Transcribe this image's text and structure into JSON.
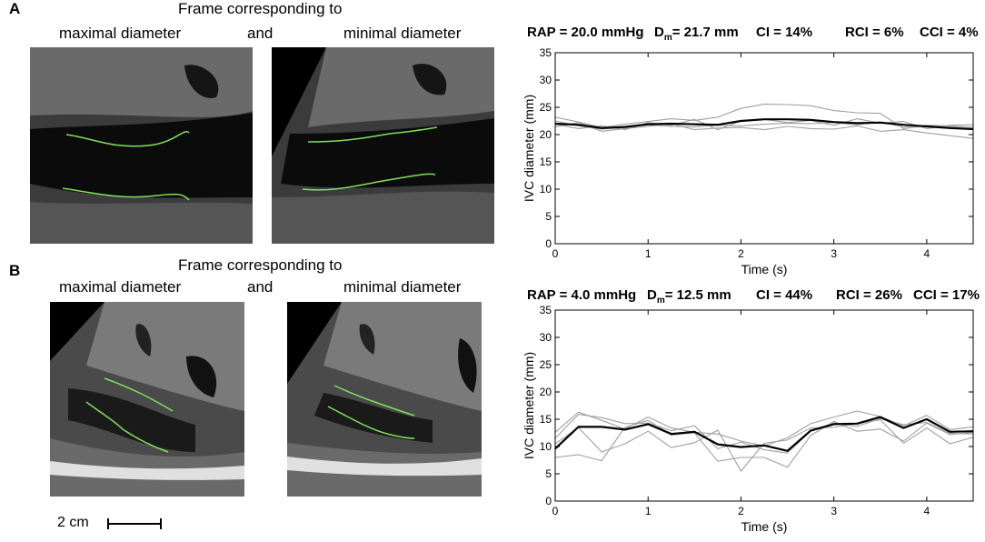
{
  "panels": [
    {
      "letter": "A",
      "frame_caption": "Frame corresponding to",
      "left_caption": "maximal diameter",
      "and_caption": "and",
      "right_caption": "minimal diameter",
      "stats": {
        "rap": "RAP = 20.0 mmHg",
        "dm_prefix": "D",
        "dm_sub": "m",
        "dm_suffix": "= 21.7 mm",
        "ci": "CI = 14%",
        "rci": "RCI = 6%",
        "cci": "CCI = 4%"
      }
    },
    {
      "letter": "B",
      "frame_caption": "Frame corresponding to",
      "left_caption": "maximal diameter",
      "and_caption": "and",
      "right_caption": "minimal diameter",
      "stats": {
        "rap": "RAP = 4.0 mmHg",
        "dm_prefix": "D",
        "dm_sub": "m",
        "dm_suffix": "= 12.5 mm",
        "ci": "CI = 44%",
        "rci": "RCI = 26%",
        "cci": "CCI = 17%"
      }
    }
  ],
  "scale_bar": {
    "label": "2 cm"
  },
  "colors": {
    "tracing": "#7fe05a",
    "mean_line": "#000000",
    "frame_lines": "#a0a0a0"
  },
  "chart_data": [
    {
      "type": "line",
      "xlabel": "Time (s)",
      "ylabel": "IVC diameter (mm)",
      "xlim": [
        0,
        4.5
      ],
      "ylim": [
        0,
        35
      ],
      "xticks": [
        0,
        1,
        2,
        3,
        4
      ],
      "yticks": [
        0,
        5,
        10,
        15,
        20,
        25,
        30,
        35
      ],
      "x": [
        0,
        0.25,
        0.5,
        0.75,
        1.0,
        1.25,
        1.5,
        1.75,
        2.0,
        2.25,
        2.5,
        2.75,
        3.0,
        3.25,
        3.5,
        3.75,
        4.0,
        4.25,
        4.5
      ],
      "series": [
        {
          "values": [
            22.5,
            21.6,
            21.0,
            21.3,
            21.8,
            21.5,
            21.4,
            21.7,
            21.6,
            21.9,
            22.1,
            22.0,
            22.2,
            21.8,
            22.3,
            21.4,
            21.7,
            21.6,
            21.3
          ]
        },
        {
          "values": [
            23.2,
            22.3,
            21.3,
            21.9,
            22.4,
            22.9,
            22.6,
            23.2,
            24.8,
            25.6,
            25.5,
            25.3,
            24.4,
            24.0,
            23.9,
            21.1,
            21.6,
            21.4,
            21.0
          ]
        },
        {
          "values": [
            21.4,
            22.2,
            20.6,
            21.1,
            21.5,
            22.0,
            20.9,
            21.2,
            21.3,
            20.9,
            21.5,
            21.1,
            21.0,
            21.6,
            20.6,
            20.9,
            20.3,
            19.8,
            19.3
          ]
        },
        {
          "values": [
            21.9,
            21.1,
            21.6,
            20.9,
            22.2,
            21.7,
            22.8,
            20.9,
            22.5,
            22.8,
            22.2,
            22.6,
            21.7,
            22.9,
            22.1,
            22.4,
            21.1,
            21.7,
            21.8
          ]
        },
        {
          "values": [
            22.0,
            21.8,
            21.2,
            21.4,
            21.9,
            22.0,
            21.9,
            21.8,
            22.5,
            22.8,
            22.8,
            22.7,
            22.3,
            22.1,
            22.2,
            21.8,
            21.5,
            21.2,
            21.0
          ]
        }
      ]
    },
    {
      "type": "line",
      "xlabel": "Time (s)",
      "ylabel": "IVC diameter (mm)",
      "xlim": [
        0,
        4.5
      ],
      "ylim": [
        0,
        35
      ],
      "xticks": [
        0,
        1,
        2,
        3,
        4
      ],
      "yticks": [
        0,
        5,
        10,
        15,
        20,
        25,
        30,
        35
      ],
      "x": [
        0,
        0.25,
        0.5,
        0.75,
        1.0,
        1.25,
        1.5,
        1.75,
        2.0,
        2.25,
        2.5,
        2.75,
        3.0,
        3.25,
        3.5,
        3.75,
        4.0,
        4.25,
        4.5
      ],
      "series": [
        {
          "values": [
            8.0,
            8.5,
            7.4,
            13.5,
            14.8,
            12.1,
            12.5,
            7.3,
            8.0,
            8.0,
            6.2,
            12.0,
            14.6,
            12.8,
            13.2,
            11.0,
            14.3,
            12.2,
            12.6
          ]
        },
        {
          "values": [
            11.5,
            15.9,
            15.3,
            14.2,
            14.3,
            12.9,
            13.8,
            9.6,
            10.8,
            9.4,
            8.8,
            12.8,
            14.3,
            13.7,
            15.1,
            14.0,
            14.4,
            12.4,
            12.3
          ]
        },
        {
          "values": [
            12.6,
            16.3,
            14.8,
            13.2,
            15.4,
            13.4,
            12.6,
            12.3,
            11.0,
            10.1,
            11.6,
            14.2,
            15.4,
            16.5,
            15.5,
            13.8,
            15.7,
            13.1,
            13.6
          ]
        },
        {
          "values": [
            10.5,
            13.5,
            9.0,
            10.5,
            12.8,
            9.8,
            10.7,
            13.0,
            5.5,
            10.6,
            11.2,
            13.4,
            13.5,
            14.2,
            14.9,
            10.6,
            13.4,
            10.5,
            11.7
          ]
        },
        {
          "values": [
            9.6,
            13.6,
            13.6,
            13.1,
            14.1,
            12.3,
            12.7,
            10.4,
            9.9,
            10.2,
            9.2,
            12.9,
            14.1,
            14.2,
            15.4,
            13.4,
            15.0,
            12.7,
            12.8
          ]
        }
      ]
    }
  ]
}
